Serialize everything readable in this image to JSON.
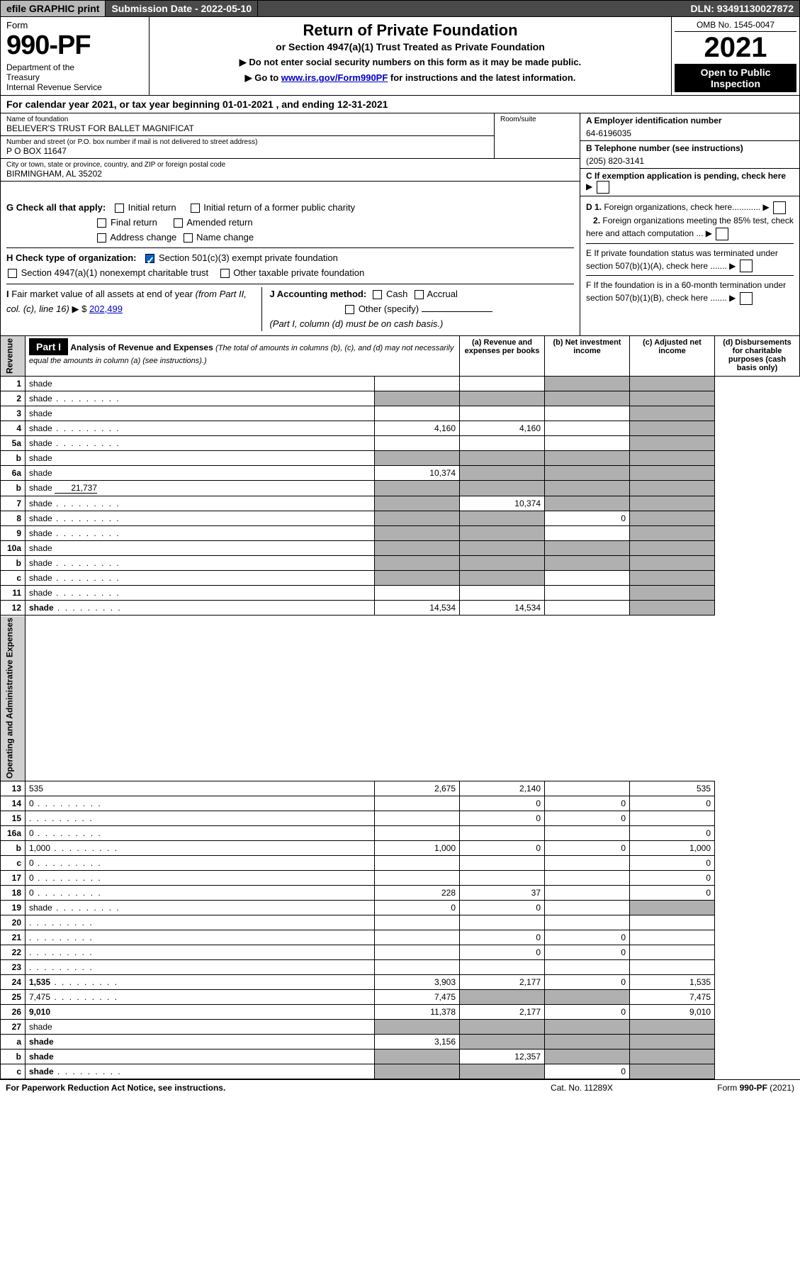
{
  "topbar": {
    "efile": "efile GRAPHIC print",
    "submission": "Submission Date - 2022-05-10",
    "dln": "DLN: 93491130027872"
  },
  "header": {
    "form_word": "Form",
    "form_num": "990-PF",
    "dept": "Department of the Treasury\nInternal Revenue Service",
    "title": "Return of Private Foundation",
    "sub1": "or Section 4947(a)(1) Trust Treated as Private Foundation",
    "sub2a": "▶ Do not enter social security numbers on this form as it may be made public.",
    "sub2b": "▶ Go to ",
    "sub2b_link": "www.irs.gov/Form990PF",
    "sub2b_tail": " for instructions and the latest information.",
    "omb": "OMB No. 1545-0047",
    "year": "2021",
    "open": "Open to Public Inspection"
  },
  "cal": "For calendar year 2021, or tax year beginning 01-01-2021                 , and ending 12-31-2021",
  "info": {
    "name_lbl": "Name of foundation",
    "name": "BELIEVER'S TRUST FOR BALLET MAGNIFICAT",
    "addr_lbl": "Number and street (or P.O. box number if mail is not delivered to street address)",
    "addr": "P O BOX 11647",
    "room_lbl": "Room/suite",
    "city_lbl": "City or town, state or province, country, and ZIP or foreign postal code",
    "city": "BIRMINGHAM, AL  35202",
    "a_lbl": "A Employer identification number",
    "a_val": "64-6196035",
    "b_lbl": "B Telephone number (see instructions)",
    "b_val": "(205) 820-3141",
    "c_lbl": "C If exemption application is pending, check here"
  },
  "checks": {
    "g_lbl": "G Check all that apply:",
    "g_opts": [
      "Initial return",
      "Initial return of a former public charity",
      "Final return",
      "Amended return",
      "Address change",
      "Name change"
    ],
    "h_lbl": "H Check type of organization:",
    "h_opt1": "Section 501(c)(3) exempt private foundation",
    "h_opt2": "Section 4947(a)(1) nonexempt charitable trust",
    "h_opt3": "Other taxable private foundation",
    "i_lbl": "I Fair market value of all assets at end of year (from Part II, col. (c), line 16) ▶ $",
    "i_val": "202,499",
    "j_lbl": "J Accounting method:",
    "j_opts": [
      "Cash",
      "Accrual",
      "Other (specify)"
    ],
    "j_note": "(Part I, column (d) must be on cash basis.)",
    "d1": "D 1. Foreign organizations, check here............",
    "d2": "2. Foreign organizations meeting the 85% test, check here and attach computation ...",
    "e": "E  If private foundation status was terminated under section 507(b)(1)(A), check here .......",
    "f": "F  If the foundation is in a 60-month termination under section 507(b)(1)(B), check here ......."
  },
  "part1": {
    "label": "Part I",
    "title": "Analysis of Revenue and Expenses",
    "title_note": "(The total of amounts in columns (b), (c), and (d) may not necessarily equal the amounts in column (a) (see instructions).)",
    "cols": {
      "a": "(a) Revenue and expenses per books",
      "b": "(b) Net investment income",
      "c": "(c) Adjusted net income",
      "d": "(d) Disbursements for charitable purposes (cash basis only)"
    }
  },
  "rev_label": "Revenue",
  "exp_label": "Operating and Administrative Expenses",
  "lines": [
    {
      "n": "1",
      "d": "shade",
      "a": "",
      "b": "",
      "c": "shade"
    },
    {
      "n": "2",
      "d": "shade",
      "a": "shade",
      "b": "shade",
      "c": "shade",
      "dots": true
    },
    {
      "n": "3",
      "d": "shade",
      "a": "",
      "b": "",
      "c": ""
    },
    {
      "n": "4",
      "d": "shade",
      "a": "4,160",
      "b": "4,160",
      "c": "",
      "dots": true
    },
    {
      "n": "5a",
      "d": "shade",
      "a": "",
      "b": "",
      "c": "",
      "dots": true
    },
    {
      "n": "b",
      "d": "shade",
      "a": "shade",
      "b": "shade",
      "c": "shade"
    },
    {
      "n": "6a",
      "d": "shade",
      "a": "10,374",
      "b": "shade",
      "c": "shade"
    },
    {
      "n": "b",
      "d": "shade",
      "inset": "21,737",
      "a": "shade",
      "b": "shade",
      "c": "shade"
    },
    {
      "n": "7",
      "d": "shade",
      "a": "shade",
      "b": "10,374",
      "c": "shade",
      "dots": true
    },
    {
      "n": "8",
      "d": "shade",
      "a": "shade",
      "b": "shade",
      "c": "0",
      "dots": true
    },
    {
      "n": "9",
      "d": "shade",
      "a": "shade",
      "b": "shade",
      "c": "",
      "dots": true
    },
    {
      "n": "10a",
      "d": "shade",
      "a": "shade",
      "b": "shade",
      "c": "shade"
    },
    {
      "n": "b",
      "d": "shade",
      "a": "shade",
      "b": "shade",
      "c": "shade",
      "dots": true
    },
    {
      "n": "c",
      "d": "shade",
      "a": "shade",
      "b": "shade",
      "c": "",
      "dots": true
    },
    {
      "n": "11",
      "d": "shade",
      "a": "",
      "b": "",
      "c": "",
      "dots": true
    },
    {
      "n": "12",
      "d": "shade",
      "a": "14,534",
      "b": "14,534",
      "c": "",
      "bold": true,
      "dots": true
    }
  ],
  "exp_lines": [
    {
      "n": "13",
      "d": "535",
      "a": "2,675",
      "b": "2,140",
      "c": ""
    },
    {
      "n": "14",
      "d": "0",
      "a": "",
      "b": "0",
      "c": "0",
      "dots": true
    },
    {
      "n": "15",
      "d": "",
      "a": "",
      "b": "0",
      "c": "0",
      "dots": true
    },
    {
      "n": "16a",
      "d": "0",
      "a": "",
      "b": "",
      "c": "",
      "dots": true
    },
    {
      "n": "b",
      "d": "1,000",
      "a": "1,000",
      "b": "0",
      "c": "0",
      "dots": true
    },
    {
      "n": "c",
      "d": "0",
      "a": "",
      "b": "",
      "c": "",
      "dots": true
    },
    {
      "n": "17",
      "d": "0",
      "a": "",
      "b": "",
      "c": "",
      "dots": true
    },
    {
      "n": "18",
      "d": "0",
      "a": "228",
      "b": "37",
      "c": "",
      "dots": true
    },
    {
      "n": "19",
      "d": "shade",
      "a": "0",
      "b": "0",
      "c": "",
      "dots": true
    },
    {
      "n": "20",
      "d": "",
      "a": "",
      "b": "",
      "c": "",
      "dots": true
    },
    {
      "n": "21",
      "d": "",
      "a": "",
      "b": "0",
      "c": "0",
      "dots": true
    },
    {
      "n": "22",
      "d": "",
      "a": "",
      "b": "0",
      "c": "0",
      "dots": true
    },
    {
      "n": "23",
      "d": "",
      "a": "",
      "b": "",
      "c": "",
      "dots": true
    },
    {
      "n": "24",
      "d": "1,535",
      "a": "3,903",
      "b": "2,177",
      "c": "0",
      "bold": true,
      "dots": true
    },
    {
      "n": "25",
      "d": "7,475",
      "a": "7,475",
      "b": "shade",
      "c": "shade",
      "dots": true
    },
    {
      "n": "26",
      "d": "9,010",
      "a": "11,378",
      "b": "2,177",
      "c": "0",
      "bold": true
    },
    {
      "n": "27",
      "d": "shade",
      "a": "shade",
      "b": "shade",
      "c": "shade"
    },
    {
      "n": "a",
      "d": "shade",
      "a": "3,156",
      "b": "shade",
      "c": "shade",
      "bold": true
    },
    {
      "n": "b",
      "d": "shade",
      "a": "shade",
      "b": "12,357",
      "c": "shade",
      "bold": true
    },
    {
      "n": "c",
      "d": "shade",
      "a": "shade",
      "b": "shade",
      "c": "0",
      "bold": true,
      "dots": true
    }
  ],
  "footer": {
    "left": "For Paperwork Reduction Act Notice, see instructions.",
    "mid": "Cat. No. 11289X",
    "right": "Form 990-PF (2021)"
  },
  "colors": {
    "shade": "#b0b0b0",
    "header_bg": "#4a4a4a",
    "link": "#0000cc",
    "check": "#0066cc"
  }
}
